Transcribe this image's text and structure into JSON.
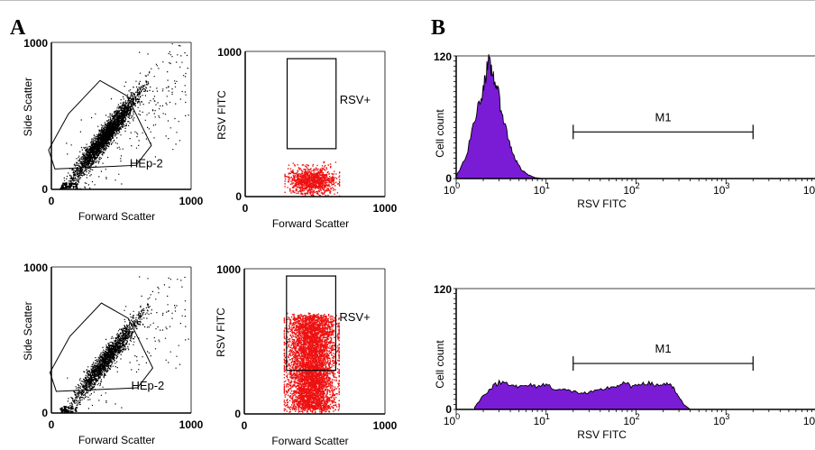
{
  "panel_labels": {
    "a": "A",
    "b": "B"
  },
  "colors": {
    "density": "#000000",
    "positive": "#ee1111",
    "histogram": "#7a1cd6",
    "outline": "#000000"
  },
  "chart_data": [
    {
      "id": "a-top-scatter",
      "type": "scatter",
      "xlabel": "Forward Scatter",
      "ylabel": "Side Scatter",
      "xlim": [
        0,
        1000
      ],
      "ylim": [
        0,
        1000
      ],
      "xticks": [
        "0",
        "1000"
      ],
      "yticks": [
        "0",
        "1000"
      ],
      "gate": "HEp-2",
      "population": {
        "x_center": 380,
        "y_center": 360,
        "description": "dense diagonal cloud"
      }
    },
    {
      "id": "a-top-rsv",
      "type": "scatter",
      "xlabel": "Forward Scatter",
      "ylabel": "RSV FITC",
      "xlim": [
        0,
        1000
      ],
      "ylim": [
        0,
        1000
      ],
      "xticks": [
        "0",
        "1000"
      ],
      "yticks": [
        "0",
        "1000"
      ],
      "gate": "RSV+",
      "gate_region": {
        "x": [
          300,
          650
        ],
        "y": [
          330,
          950
        ]
      },
      "population": {
        "x_range": [
          300,
          650
        ],
        "y_range": [
          20,
          200
        ]
      }
    },
    {
      "id": "b-top-hist",
      "type": "area",
      "xlabel": "RSV FITC",
      "ylabel": "Cell count",
      "xscale": "log",
      "xlim": [
        1,
        10000
      ],
      "ylim": [
        0,
        120
      ],
      "xticks": [
        "10",
        "10",
        "10",
        "10",
        "10"
      ],
      "xtick_exp": [
        "0",
        "1",
        "2",
        "3",
        "4"
      ],
      "yticks": [
        "0",
        "120"
      ],
      "marker": {
        "label": "M1",
        "range": [
          20,
          2000
        ]
      },
      "x": [
        1,
        1.3,
        1.6,
        1.9,
        2.1,
        2.3,
        2.5,
        2.8,
        3.1,
        3.5,
        4,
        4.6,
        5.3,
        6.2,
        7.5,
        9
      ],
      "y": [
        2,
        22,
        58,
        80,
        100,
        112,
        105,
        92,
        72,
        52,
        32,
        18,
        9,
        4,
        1,
        0
      ]
    },
    {
      "id": "a-bottom-scatter",
      "type": "scatter",
      "xlabel": "Forward Scatter",
      "ylabel": "Side Scatter",
      "xlim": [
        0,
        1000
      ],
      "ylim": [
        0,
        1000
      ],
      "xticks": [
        "0",
        "1000"
      ],
      "yticks": [
        "0",
        "1000"
      ],
      "gate": "HEp-2",
      "population": {
        "x_center": 390,
        "y_center": 370,
        "description": "dense diagonal cloud"
      }
    },
    {
      "id": "a-bottom-rsv",
      "type": "scatter",
      "xlabel": "Forward Scatter",
      "ylabel": "RSV FITC",
      "xlim": [
        0,
        1000
      ],
      "ylim": [
        0,
        1000
      ],
      "xticks": [
        "0",
        "1000"
      ],
      "yticks": [
        "0",
        "1000"
      ],
      "gate": "RSV+",
      "gate_region": {
        "x": [
          300,
          650
        ],
        "y": [
          300,
          950
        ]
      },
      "population": {
        "x_range": [
          300,
          650
        ],
        "y_range": [
          30,
          680
        ]
      }
    },
    {
      "id": "b-bottom-hist",
      "type": "area",
      "xlabel": "RSV FITC",
      "ylabel": "Cell count",
      "xscale": "log",
      "xlim": [
        1,
        10000
      ],
      "ylim": [
        0,
        120
      ],
      "xticks": [
        "10",
        "10",
        "10",
        "10",
        "10"
      ],
      "xtick_exp": [
        "0",
        "1",
        "2",
        "3",
        "4"
      ],
      "yticks": [
        "0",
        "120"
      ],
      "marker": {
        "label": "M1",
        "range": [
          20,
          2000
        ]
      },
      "x": [
        1.6,
        2,
        2.5,
        3,
        4,
        5,
        6.5,
        8,
        10,
        13,
        17,
        22,
        28,
        36,
        46,
        60,
        75,
        95,
        120,
        150,
        180,
        220,
        260,
        300,
        340,
        400
      ],
      "y": [
        2,
        14,
        22,
        27,
        26,
        22,
        24,
        23,
        25,
        20,
        19,
        17,
        16,
        18,
        21,
        23,
        26,
        22,
        27,
        25,
        24,
        26,
        21,
        12,
        5,
        0
      ]
    }
  ]
}
